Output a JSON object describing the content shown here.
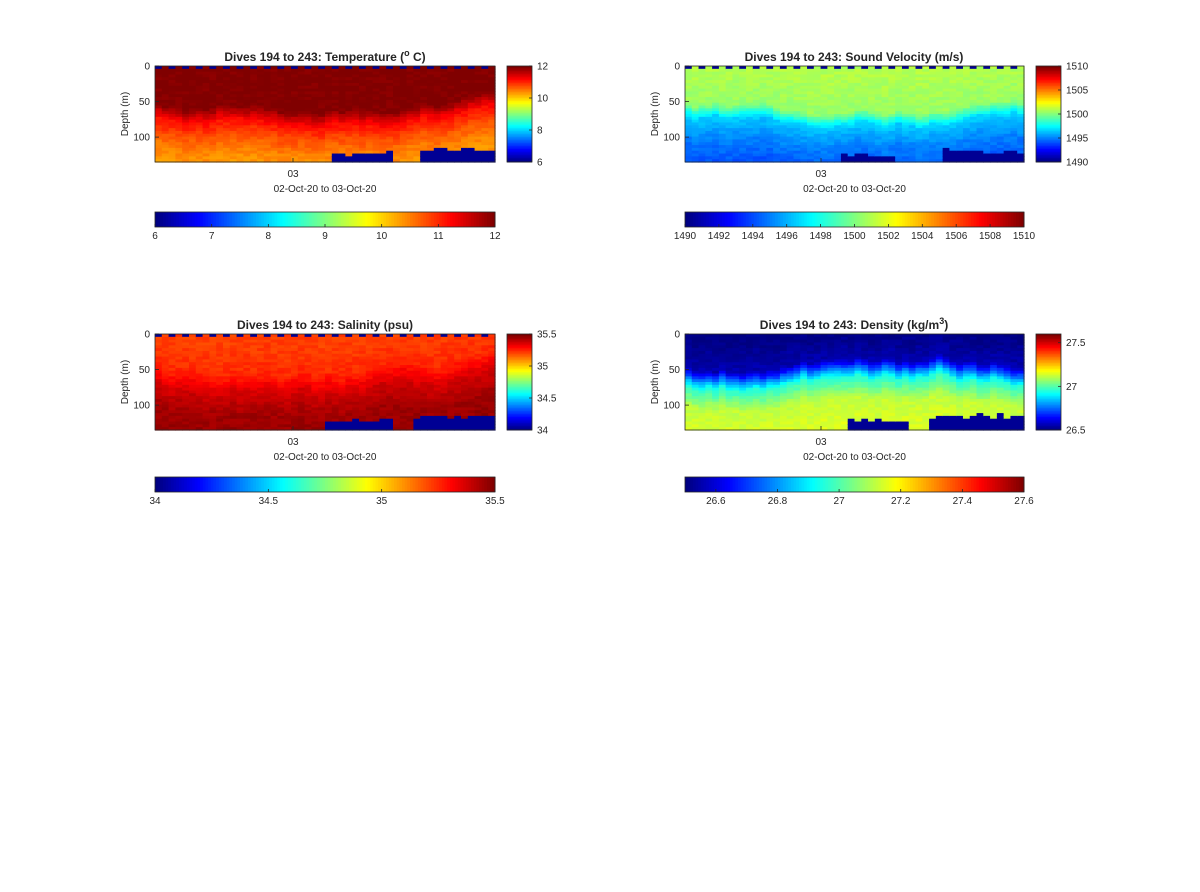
{
  "figure": {
    "background": "#ffffff"
  },
  "chart_data": [
    {
      "type": "heatmap",
      "variable": "temperature",
      "title_main": "Dives 194 to 243: Temperature (",
      "title_sup": "o",
      "title_tail": " C)",
      "ylabel": "Depth (m)",
      "xlabel": "02-Oct-20 to 03-Oct-20",
      "x_tick_label": "03",
      "y_ticks": [
        "0",
        "50",
        "100"
      ],
      "y_tick_values": [
        0,
        50,
        100
      ],
      "ylim": [
        0,
        135
      ],
      "y_reversed": true,
      "clim": [
        6,
        12
      ],
      "colorbar_right_ticks": [
        "6",
        "8",
        "10",
        "12"
      ],
      "colorbar_right_values": [
        6,
        8,
        10,
        12
      ],
      "colorbar_bottom_ticks": [
        "6",
        "7",
        "8",
        "9",
        "10",
        "11",
        "12"
      ],
      "colorbar_bottom_values": [
        6,
        7,
        8,
        9,
        10,
        11,
        12
      ],
      "colormap": "jet",
      "dives": [
        194,
        243
      ],
      "depth_profile": [
        {
          "depth": 0,
          "value": 12.0
        },
        {
          "depth": 50,
          "value": 12.0
        },
        {
          "depth": 70,
          "value": 11.2
        },
        {
          "depth": 90,
          "value": 10.8
        },
        {
          "depth": 110,
          "value": 10.5
        },
        {
          "depth": 135,
          "value": 10.3
        }
      ],
      "shallow_value": 12.0,
      "deep_value": 10.3,
      "thermocline_depth_range": [
        40,
        65
      ],
      "surface_gap_pattern": true,
      "seafloor_gaps": [
        [
          0.52,
          0.68,
          123
        ],
        [
          0.78,
          1.0,
          118
        ]
      ]
    },
    {
      "type": "heatmap",
      "variable": "sound_velocity",
      "title_main": "Dives 194 to 243: Sound Velocity (m/s)",
      "title_sup": "",
      "title_tail": "",
      "ylabel": "Depth (m)",
      "xlabel": "02-Oct-20 to 03-Oct-20",
      "x_tick_label": "03",
      "y_ticks": [
        "0",
        "50",
        "100"
      ],
      "y_tick_values": [
        0,
        50,
        100
      ],
      "ylim": [
        0,
        135
      ],
      "y_reversed": true,
      "clim": [
        1490,
        1510
      ],
      "colorbar_right_ticks": [
        "1490",
        "1495",
        "1500",
        "1505",
        "1510"
      ],
      "colorbar_right_values": [
        1490,
        1495,
        1500,
        1505,
        1510
      ],
      "colorbar_bottom_ticks": [
        "1490",
        "1492",
        "1494",
        "1496",
        "1498",
        "1500",
        "1502",
        "1504",
        "1506",
        "1508",
        "1510"
      ],
      "colorbar_bottom_values": [
        1490,
        1492,
        1494,
        1496,
        1498,
        1500,
        1502,
        1504,
        1506,
        1508,
        1510
      ],
      "colormap": "jet",
      "dives": [
        194,
        243
      ],
      "depth_profile": [
        {
          "depth": 0,
          "value": 1501.0
        },
        {
          "depth": 50,
          "value": 1500.5
        },
        {
          "depth": 70,
          "value": 1496.5
        },
        {
          "depth": 100,
          "value": 1495.0
        },
        {
          "depth": 135,
          "value": 1494.0
        }
      ],
      "shallow_value": 1500.8,
      "deep_value": 1494.0,
      "thermocline_depth_range": [
        40,
        65
      ],
      "surface_gap_pattern": true,
      "seafloor_gaps": [
        [
          0.45,
          0.6,
          125
        ],
        [
          0.75,
          1.0,
          120
        ]
      ]
    },
    {
      "type": "heatmap",
      "variable": "salinity",
      "title_main": "Dives 194 to 243: Salinity (psu)",
      "title_sup": "",
      "title_tail": "",
      "ylabel": "Depth (m)",
      "xlabel": "02-Oct-20 to 03-Oct-20",
      "x_tick_label": "03",
      "y_ticks": [
        "0",
        "50",
        "100"
      ],
      "y_tick_values": [
        0,
        50,
        100
      ],
      "ylim": [
        0,
        135
      ],
      "y_reversed": true,
      "clim": [
        34,
        35.5
      ],
      "colorbar_right_ticks": [
        "34",
        "34.5",
        "35",
        "35.5"
      ],
      "colorbar_right_values": [
        34,
        34.5,
        35,
        35.5
      ],
      "colorbar_bottom_ticks": [
        "34",
        "34.5",
        "35",
        "35.5"
      ],
      "colorbar_bottom_values": [
        34,
        34.5,
        35,
        35.5
      ],
      "colormap": "jet",
      "dives": [
        194,
        243
      ],
      "depth_profile": [
        {
          "depth": 0,
          "value": 35.22
        },
        {
          "depth": 40,
          "value": 35.25
        },
        {
          "depth": 70,
          "value": 35.38
        },
        {
          "depth": 100,
          "value": 35.45
        },
        {
          "depth": 135,
          "value": 35.47
        }
      ],
      "shallow_value": 35.22,
      "deep_value": 35.47,
      "thermocline_depth_range": [
        40,
        65
      ],
      "surface_gap_pattern": true,
      "seafloor_gaps": [
        [
          0.5,
          0.68,
          122
        ],
        [
          0.76,
          1.0,
          116
        ]
      ]
    },
    {
      "type": "heatmap",
      "variable": "density",
      "title_main": "Dives 194 to 243: Density (kg/m",
      "title_sup": "3",
      "title_tail": ")",
      "ylabel": "Depth (m)",
      "xlabel": "02-Oct-20 to 03-Oct-20",
      "x_tick_label": "03",
      "y_ticks": [
        "0",
        "50",
        "100"
      ],
      "y_tick_values": [
        0,
        50,
        100
      ],
      "ylim": [
        0,
        135
      ],
      "y_reversed": true,
      "clim": [
        26.5,
        27.6
      ],
      "colorbar_right_ticks": [
        "26.5",
        "27",
        "27.5"
      ],
      "colorbar_right_values": [
        26.5,
        27,
        27.5
      ],
      "colorbar_bottom_ticks": [
        "26.6",
        "26.8",
        "27",
        "27.2",
        "27.4",
        "27.6"
      ],
      "colorbar_bottom_values": [
        26.6,
        26.8,
        27,
        27.2,
        27.4,
        27.6
      ],
      "colormap": "jet",
      "dives": [
        194,
        243
      ],
      "depth_profile": [
        {
          "depth": 0,
          "value": 26.5
        },
        {
          "depth": 45,
          "value": 26.55
        },
        {
          "depth": 70,
          "value": 26.95
        },
        {
          "depth": 100,
          "value": 27.12
        },
        {
          "depth": 135,
          "value": 27.15
        }
      ],
      "shallow_value": 26.5,
      "deep_value": 27.15,
      "thermocline_depth_range": [
        40,
        65
      ],
      "surface_gap_pattern": false,
      "seafloor_gaps": [
        [
          0.48,
          0.65,
          122
        ],
        [
          0.72,
          1.0,
          116
        ]
      ]
    }
  ]
}
